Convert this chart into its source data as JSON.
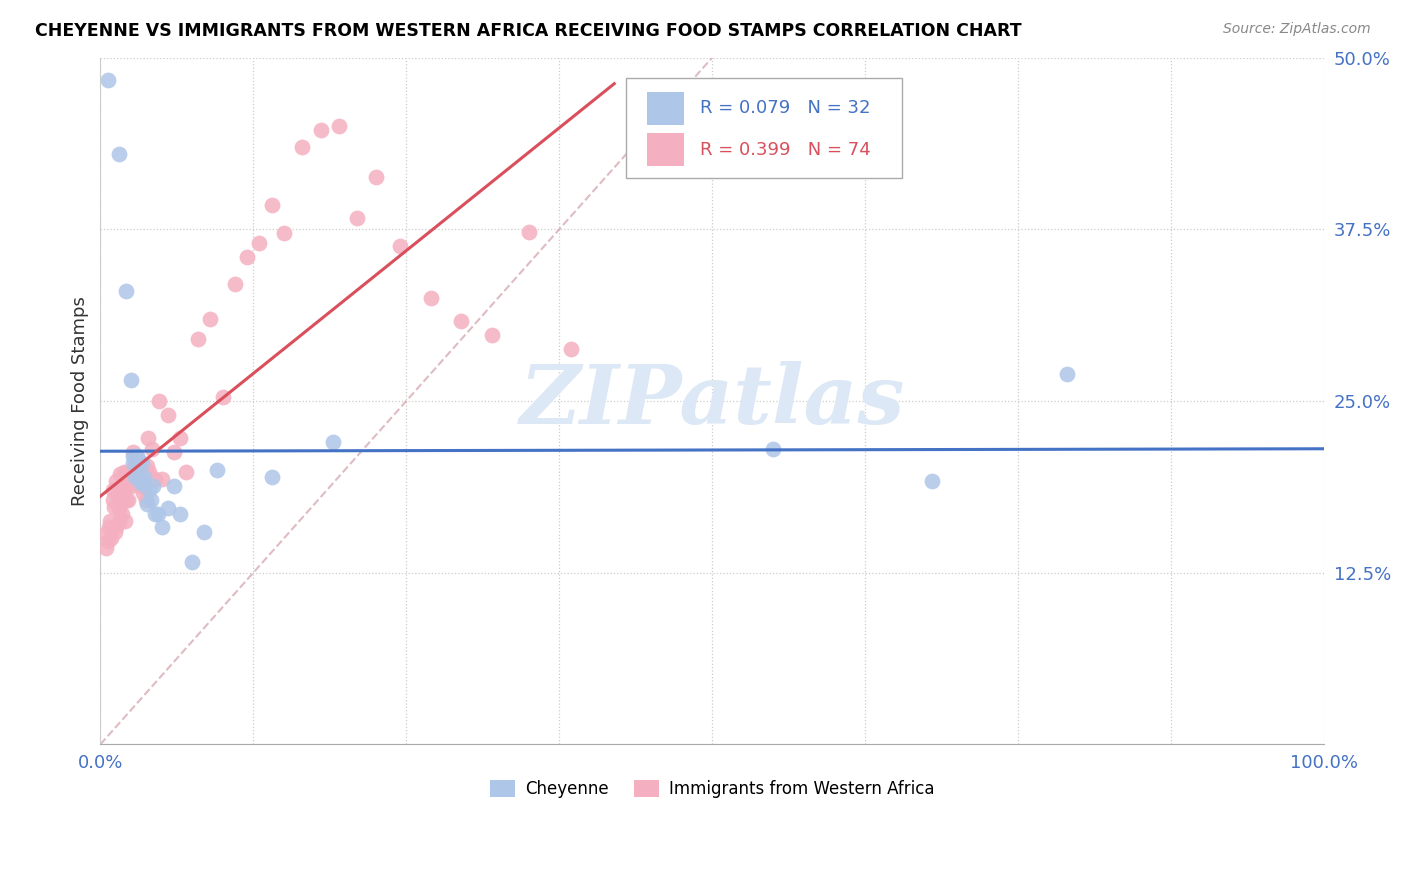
{
  "title": "CHEYENNE VS IMMIGRANTS FROM WESTERN AFRICA RECEIVING FOOD STAMPS CORRELATION CHART",
  "source": "Source: ZipAtlas.com",
  "ylabel": "Receiving Food Stamps",
  "xlim": [
    0,
    1.0
  ],
  "ylim": [
    0,
    0.5
  ],
  "watermark_zip": "ZIP",
  "watermark_atlas": "atlas",
  "cheyenne_color": "#aec6e8",
  "western_africa_color": "#f4b0c0",
  "line_blue": "#4472c4",
  "line_pink": "#d94f5c",
  "line_diagonal_color": "#d0a0a8",
  "cheyenne_label": "Cheyenne",
  "western_africa_label": "Immigrants from Western Africa",
  "legend_r1": "R = 0.079",
  "legend_n1": "N = 32",
  "legend_r2": "R = 0.399",
  "legend_n2": "N = 74",
  "cheyenne_points_x": [
    0.006,
    0.015,
    0.021,
    0.025,
    0.027,
    0.027,
    0.028,
    0.03,
    0.031,
    0.032,
    0.033,
    0.034,
    0.035,
    0.036,
    0.038,
    0.04,
    0.041,
    0.043,
    0.045,
    0.047,
    0.05,
    0.055,
    0.06,
    0.065,
    0.075,
    0.085,
    0.095,
    0.14,
    0.19,
    0.55,
    0.68,
    0.79
  ],
  "cheyenne_points_y": [
    0.484,
    0.43,
    0.33,
    0.265,
    0.21,
    0.205,
    0.195,
    0.21,
    0.205,
    0.195,
    0.19,
    0.205,
    0.19,
    0.195,
    0.175,
    0.185,
    0.178,
    0.188,
    0.168,
    0.168,
    0.158,
    0.172,
    0.188,
    0.168,
    0.133,
    0.155,
    0.2,
    0.195,
    0.22,
    0.215,
    0.192,
    0.27
  ],
  "western_africa_points_x": [
    0.004,
    0.005,
    0.006,
    0.007,
    0.008,
    0.009,
    0.01,
    0.01,
    0.011,
    0.012,
    0.013,
    0.013,
    0.014,
    0.015,
    0.015,
    0.016,
    0.016,
    0.017,
    0.018,
    0.018,
    0.019,
    0.019,
    0.02,
    0.02,
    0.021,
    0.022,
    0.022,
    0.023,
    0.024,
    0.025,
    0.025,
    0.026,
    0.027,
    0.028,
    0.029,
    0.03,
    0.031,
    0.032,
    0.033,
    0.034,
    0.035,
    0.035,
    0.036,
    0.037,
    0.038,
    0.039,
    0.04,
    0.042,
    0.045,
    0.048,
    0.05,
    0.055,
    0.06,
    0.065,
    0.07,
    0.08,
    0.09,
    0.1,
    0.11,
    0.12,
    0.13,
    0.14,
    0.15,
    0.165,
    0.18,
    0.195,
    0.21,
    0.225,
    0.245,
    0.27,
    0.295,
    0.32,
    0.35,
    0.385
  ],
  "western_africa_points_y": [
    0.153,
    0.143,
    0.148,
    0.158,
    0.163,
    0.15,
    0.185,
    0.178,
    0.173,
    0.155,
    0.158,
    0.192,
    0.182,
    0.172,
    0.162,
    0.197,
    0.178,
    0.187,
    0.177,
    0.168,
    0.198,
    0.188,
    0.163,
    0.187,
    0.178,
    0.188,
    0.198,
    0.178,
    0.193,
    0.198,
    0.188,
    0.198,
    0.213,
    0.203,
    0.208,
    0.198,
    0.208,
    0.188,
    0.193,
    0.188,
    0.198,
    0.183,
    0.188,
    0.178,
    0.203,
    0.223,
    0.198,
    0.215,
    0.193,
    0.25,
    0.193,
    0.24,
    0.213,
    0.223,
    0.198,
    0.295,
    0.31,
    0.253,
    0.335,
    0.355,
    0.365,
    0.393,
    0.372,
    0.435,
    0.447,
    0.45,
    0.383,
    0.413,
    0.363,
    0.325,
    0.308,
    0.298,
    0.373,
    0.288
  ]
}
